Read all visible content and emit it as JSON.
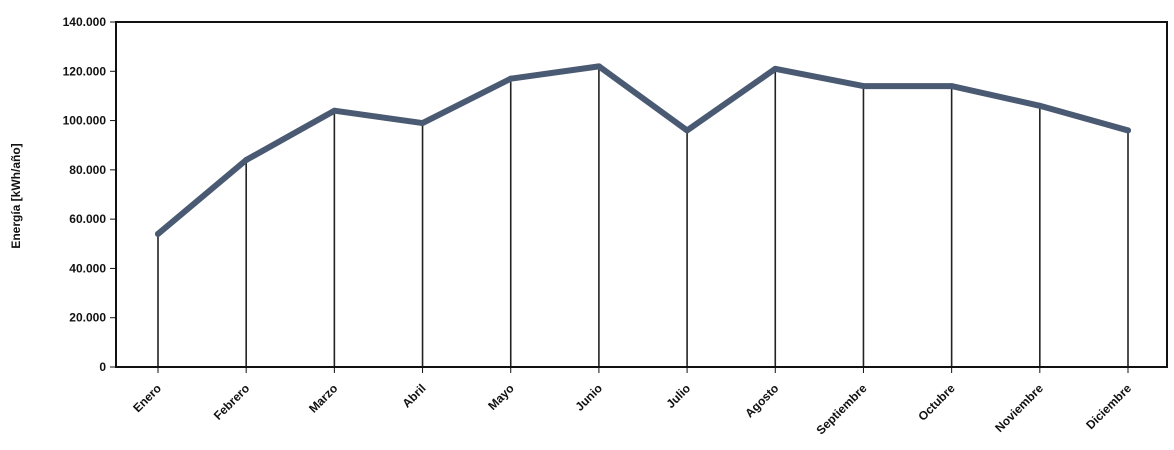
{
  "chart_data": {
    "type": "line",
    "ylabel": "Energía [kWh/año]",
    "xlabel": "",
    "ylim": [
      0,
      140000
    ],
    "y_ticks": [
      {
        "value": 0,
        "label": "0"
      },
      {
        "value": 20000,
        "label": "20.000"
      },
      {
        "value": 40000,
        "label": "40.000"
      },
      {
        "value": 60000,
        "label": "60.000"
      },
      {
        "value": 80000,
        "label": "80.000"
      },
      {
        "value": 100000,
        "label": "100.000"
      },
      {
        "value": 120000,
        "label": "120.000"
      },
      {
        "value": 140000,
        "label": "140.000"
      }
    ],
    "categories": [
      "Enero",
      "Febrero",
      "Marzo",
      "Abril",
      "Mayo",
      "Junio",
      "Julio",
      "Agosto",
      "Septiembre",
      "Octubre",
      "Noviembre",
      "Diciembre"
    ],
    "values": [
      54000,
      84000,
      104000,
      99000,
      117000,
      122000,
      96000,
      121000,
      114000,
      114000,
      106000,
      96000
    ],
    "drop_lines": true,
    "grid": false,
    "legend": "none",
    "line_color": "#4a5a72",
    "drop_line_color": "#222222",
    "frame_color": "#111111"
  }
}
